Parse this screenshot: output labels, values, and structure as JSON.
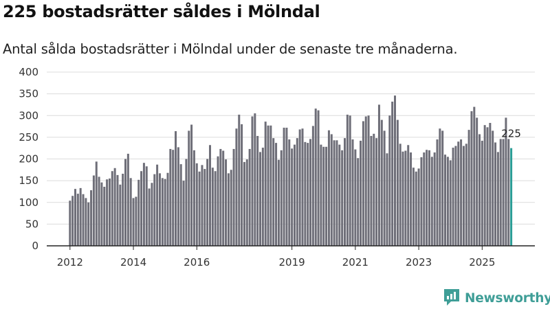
{
  "title": "225 bostadsrätter såldes i Mölndal",
  "subtitle": "Antal sålda bostadsrätter i Mölndal under de senaste tre månaderna.",
  "brand": {
    "name": "Newsworthy",
    "icon": "newsworthy-logo-icon"
  },
  "colors": {
    "bar": "#6e6e78",
    "highlight": "#2a9d96",
    "grid": "#dcdcdc",
    "axis": "#222222"
  },
  "chart_data": {
    "type": "bar",
    "title": "225 bostadsrätter såldes i Mölndal",
    "xlabel": "",
    "ylabel": "",
    "ylim": [
      0,
      400
    ],
    "yticks": [
      0,
      50,
      100,
      150,
      200,
      250,
      300,
      350,
      400
    ],
    "x_start": "2012-01",
    "x_end": "2025-10",
    "xtick_labels": [
      {
        "label": "2012",
        "year": 2012
      },
      {
        "label": "2014",
        "year": 2014
      },
      {
        "label": "2016",
        "year": 2016
      },
      {
        "label": "2019",
        "year": 2019
      },
      {
        "label": "2021",
        "year": 2021
      },
      {
        "label": "2023",
        "year": 2023
      },
      {
        "label": "2025",
        "year": 2025
      }
    ],
    "grid": true,
    "highlight_label": "225",
    "values": [
      104,
      115,
      131,
      120,
      133,
      119,
      110,
      100,
      128,
      162,
      194,
      159,
      146,
      136,
      153,
      155,
      172,
      179,
      163,
      141,
      166,
      200,
      212,
      156,
      110,
      113,
      152,
      172,
      191,
      183,
      132,
      145,
      165,
      187,
      167,
      156,
      154,
      168,
      223,
      221,
      264,
      227,
      188,
      150,
      200,
      265,
      279,
      220,
      190,
      171,
      186,
      177,
      200,
      232,
      180,
      172,
      206,
      223,
      219,
      199,
      167,
      175,
      223,
      270,
      302,
      280,
      193,
      199,
      223,
      298,
      305,
      253,
      216,
      226,
      286,
      277,
      277,
      248,
      237,
      198,
      220,
      272,
      272,
      245,
      224,
      233,
      248,
      268,
      270,
      239,
      237,
      246,
      276,
      316,
      312,
      233,
      228,
      228,
      266,
      257,
      243,
      243,
      233,
      220,
      248,
      302,
      300,
      245,
      222,
      202,
      242,
      287,
      298,
      300,
      253,
      258,
      248,
      325,
      290,
      265,
      213,
      300,
      332,
      346,
      290,
      235,
      217,
      219,
      232,
      215,
      180,
      171,
      178,
      204,
      215,
      221,
      220,
      205,
      215,
      245,
      270,
      265,
      210,
      205,
      197,
      226,
      230,
      240,
      245,
      230,
      235,
      267,
      310,
      320,
      295,
      257,
      242,
      278,
      273,
      283,
      265,
      238,
      216,
      246,
      246,
      295,
      246,
      225
    ]
  }
}
